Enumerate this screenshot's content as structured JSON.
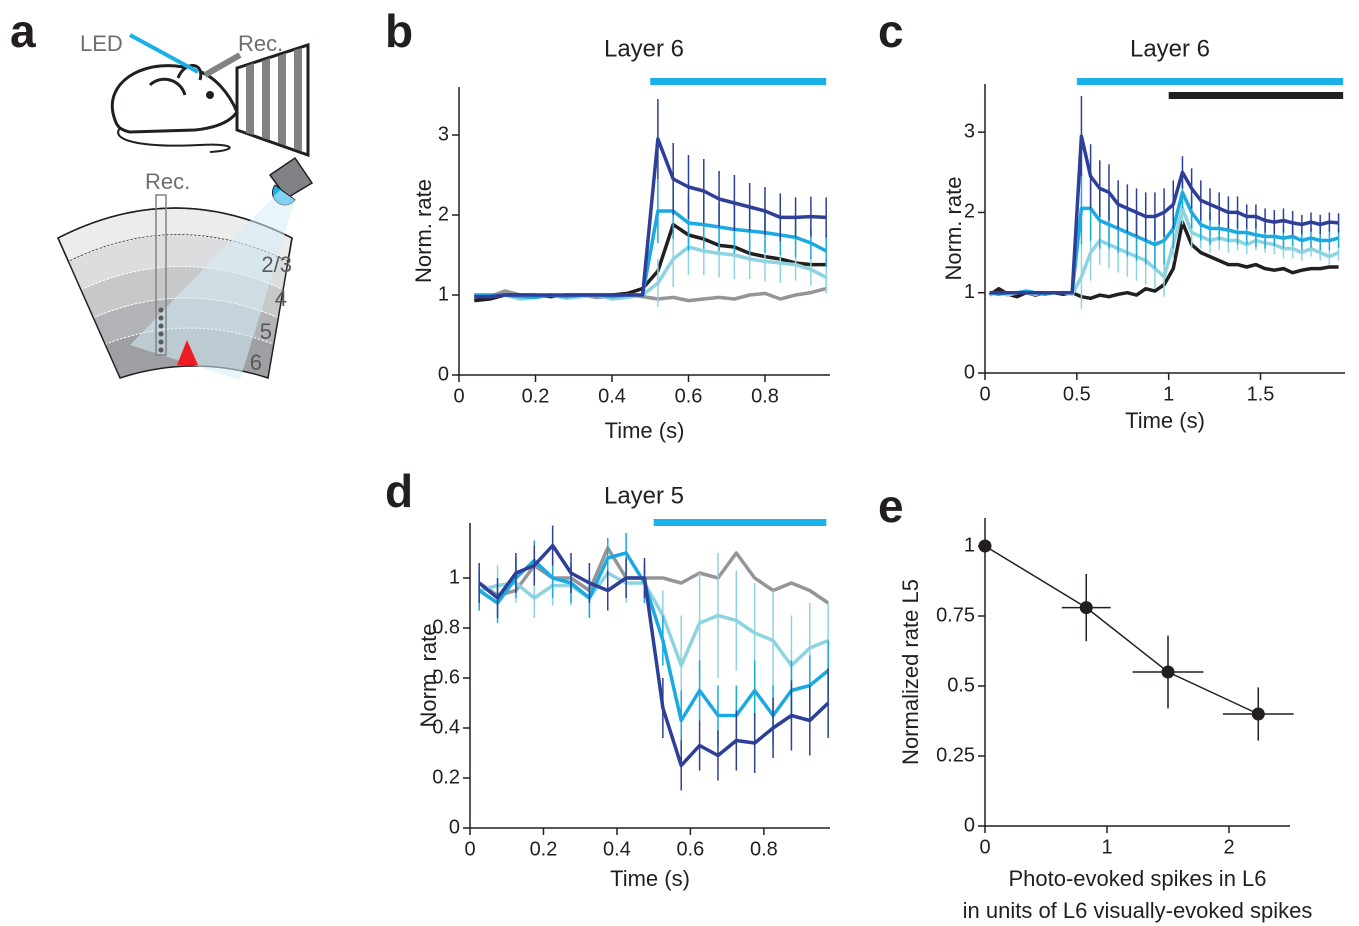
{
  "diagram": {
    "panel_label": "a",
    "led": "LED",
    "rec_top": "Rec.",
    "rec_probe": "Rec.",
    "layers": [
      "2/3",
      "4",
      "5",
      "6"
    ]
  },
  "chart_data": [
    {
      "type": "line",
      "panel_label": "b",
      "title": "Layer 6",
      "xlabel": "Time (s)",
      "ylabel": "Norm. rate",
      "xlim": [
        0,
        0.97
      ],
      "ylim": [
        0,
        3.6
      ],
      "xticks": [
        0,
        0.2,
        0.4,
        0.6,
        0.8
      ],
      "yticks": [
        0,
        1,
        2,
        3
      ],
      "stimulus_bars": [
        {
          "color": "#1ab0e8",
          "start": 0.5,
          "end": 0.96
        }
      ],
      "x": [
        0.04,
        0.08,
        0.12,
        0.16,
        0.2,
        0.24,
        0.28,
        0.32,
        0.36,
        0.4,
        0.44,
        0.48,
        0.52,
        0.56,
        0.6,
        0.64,
        0.68,
        0.72,
        0.76,
        0.8,
        0.84,
        0.88,
        0.92,
        0.96
      ],
      "series": [
        {
          "color": "#939598",
          "values": [
            0.95,
            0.98,
            1.05,
            1.0,
            0.98,
            1.0,
            0.98,
            1.0,
            0.97,
            0.98,
            1.0,
            0.98,
            0.95,
            0.97,
            0.93,
            0.95,
            0.97,
            0.95,
            1.0,
            1.02,
            0.95,
            1.0,
            1.03,
            1.08
          ]
        },
        {
          "color": "#231f20",
          "values": [
            0.93,
            0.95,
            1.0,
            1.0,
            1.0,
            0.98,
            1.0,
            1.0,
            1.0,
            1.0,
            1.02,
            1.08,
            1.3,
            1.88,
            1.75,
            1.7,
            1.62,
            1.6,
            1.52,
            1.48,
            1.45,
            1.4,
            1.38,
            1.38
          ]
        },
        {
          "color": "#8dd3e0",
          "values": [
            1.0,
            0.98,
            1.0,
            0.95,
            0.97,
            1.0,
            0.96,
            0.98,
            1.0,
            0.95,
            0.97,
            1.0,
            1.15,
            1.45,
            1.6,
            1.55,
            1.52,
            1.5,
            1.45,
            1.42,
            1.4,
            1.38,
            1.32,
            1.22
          ],
          "errors": [
            null,
            null,
            null,
            null,
            null,
            null,
            null,
            null,
            null,
            null,
            null,
            null,
            0.3,
            0.35,
            0.35,
            0.3,
            0.3,
            0.3,
            0.25,
            0.25,
            0.25,
            0.2,
            0.2,
            0.2
          ]
        },
        {
          "color": "#1aa9e0",
          "values": [
            1.0,
            1.0,
            1.0,
            0.98,
            0.97,
            1.0,
            0.98,
            1.0,
            1.0,
            0.98,
            1.0,
            1.0,
            2.05,
            2.05,
            1.9,
            1.88,
            1.85,
            1.82,
            1.8,
            1.78,
            1.75,
            1.72,
            1.65,
            1.55
          ],
          "errors": [
            null,
            null,
            null,
            null,
            null,
            null,
            null,
            null,
            null,
            null,
            null,
            null,
            0.4,
            0.35,
            0.35,
            0.3,
            0.3,
            0.3,
            0.3,
            0.25,
            0.25,
            0.25,
            0.2,
            0.2
          ]
        },
        {
          "color": "#2e3f97",
          "values": [
            0.98,
            0.98,
            1,
            1,
            1,
            1,
            1,
            1,
            1,
            1,
            1,
            1,
            2.95,
            2.45,
            2.35,
            2.3,
            2.2,
            2.15,
            2.1,
            2.05,
            1.97,
            1.97,
            1.98,
            1.97
          ],
          "errors": [
            null,
            null,
            null,
            null,
            null,
            null,
            null,
            null,
            null,
            null,
            null,
            null,
            0.5,
            0.45,
            0.4,
            0.4,
            0.35,
            0.35,
            0.3,
            0.3,
            0.3,
            0.25,
            0.25,
            0.25
          ]
        }
      ]
    },
    {
      "type": "line",
      "panel_label": "c",
      "title": "Layer 6",
      "xlabel": "Time (s)",
      "ylabel": "Norm. rate",
      "xlim": [
        0,
        1.96
      ],
      "ylim": [
        0,
        3.6
      ],
      "xticks": [
        0,
        0.5,
        1,
        1.5
      ],
      "yticks": [
        0,
        1,
        2,
        3
      ],
      "stimulus_bars": [
        {
          "color": "#1ab0e8",
          "start": 0.5,
          "end": 1.95
        },
        {
          "color": "#231f20",
          "start": 1.0,
          "end": 1.95
        }
      ],
      "x": [
        0.025,
        0.075,
        0.125,
        0.175,
        0.225,
        0.275,
        0.325,
        0.375,
        0.425,
        0.475,
        0.525,
        0.575,
        0.625,
        0.675,
        0.725,
        0.775,
        0.825,
        0.875,
        0.925,
        0.975,
        1.025,
        1.075,
        1.125,
        1.175,
        1.225,
        1.275,
        1.325,
        1.375,
        1.425,
        1.475,
        1.525,
        1.575,
        1.625,
        1.675,
        1.725,
        1.775,
        1.825,
        1.875,
        1.925
      ],
      "series": [
        {
          "color": "#231f20",
          "values": [
            0.97,
            1.05,
            0.98,
            0.95,
            1,
            0.97,
            1,
            1,
            0.98,
            1,
            0.95,
            0.93,
            0.97,
            0.95,
            0.98,
            1.0,
            0.97,
            1.05,
            1.02,
            1.1,
            1.3,
            1.88,
            1.6,
            1.5,
            1.45,
            1.4,
            1.35,
            1.35,
            1.32,
            1.35,
            1.3,
            1.28,
            1.3,
            1.25,
            1.28,
            1.3,
            1.3,
            1.32,
            1.32
          ]
        },
        {
          "color": "#8dd3e0",
          "values": [
            0.98,
            1,
            0.97,
            1,
            1,
            0.98,
            1,
            1,
            1,
            0.98,
            1.2,
            1.5,
            1.65,
            1.6,
            1.55,
            1.5,
            1.45,
            1.4,
            1.3,
            1.2,
            1.6,
            2.05,
            1.75,
            1.7,
            1.65,
            1.68,
            1.65,
            1.65,
            1.6,
            1.65,
            1.62,
            1.6,
            1.55,
            1.55,
            1.5,
            1.55,
            1.5,
            1.45,
            1.5
          ],
          "errors": [
            null,
            null,
            null,
            null,
            null,
            null,
            null,
            null,
            null,
            null,
            0.4,
            0.35,
            0.3,
            0.3,
            0.3,
            0.3,
            0.3,
            0.3,
            0.25,
            0.25,
            0.2,
            0.2,
            0.2,
            0.15,
            0.15,
            0.15,
            0.15,
            0.12,
            0.12,
            0.12,
            0.12,
            0.12,
            0.12,
            0.12,
            0.1,
            0.1,
            0.1,
            0.1,
            0.1
          ]
        },
        {
          "color": "#1aa9e0",
          "values": [
            1,
            0.98,
            1,
            1,
            1.02,
            1,
            0.98,
            1,
            1,
            1,
            2.05,
            2.05,
            1.9,
            1.85,
            1.8,
            1.75,
            1.7,
            1.65,
            1.6,
            1.65,
            1.8,
            2.25,
            2.0,
            1.85,
            1.8,
            1.8,
            1.78,
            1.75,
            1.75,
            1.72,
            1.7,
            1.7,
            1.68,
            1.7,
            1.65,
            1.68,
            1.65,
            1.65,
            1.68
          ],
          "errors": [
            null,
            null,
            null,
            null,
            null,
            null,
            null,
            null,
            null,
            null,
            0.45,
            0.4,
            0.35,
            0.3,
            0.3,
            0.3,
            0.3,
            0.3,
            0.3,
            0.3,
            0.25,
            0.2,
            0.2,
            0.2,
            0.2,
            0.15,
            0.15,
            0.15,
            0.15,
            0.15,
            0.15,
            0.12,
            0.12,
            0.12,
            0.12,
            0.12,
            0.12,
            0.12,
            0.12
          ]
        },
        {
          "color": "#2e3f97",
          "values": [
            1,
            1,
            1,
            1,
            1,
            1,
            1,
            1,
            1,
            1,
            2.95,
            2.45,
            2.3,
            2.25,
            2.1,
            2.05,
            2.0,
            1.95,
            1.95,
            2.0,
            2.1,
            2.5,
            2.3,
            2.15,
            2.1,
            2.05,
            2.0,
            2.0,
            1.95,
            1.95,
            1.9,
            1.88,
            1.9,
            1.87,
            1.85,
            1.88,
            1.85,
            1.88,
            1.87
          ],
          "errors": [
            null,
            null,
            null,
            null,
            null,
            null,
            null,
            null,
            null,
            null,
            0.5,
            0.4,
            0.35,
            0.35,
            0.3,
            0.3,
            0.3,
            0.3,
            0.3,
            0.3,
            0.3,
            0.2,
            0.25,
            0.25,
            0.2,
            0.2,
            0.2,
            0.2,
            0.15,
            0.15,
            0.15,
            0.15,
            0.15,
            0.15,
            0.12,
            0.12,
            0.12,
            0.12,
            0.12
          ]
        }
      ]
    },
    {
      "type": "line",
      "panel_label": "d",
      "title": "Layer 5",
      "xlabel": "Time (s)",
      "ylabel": "Norm. rate",
      "xlim": [
        0,
        0.98
      ],
      "ylim": [
        0,
        1.22
      ],
      "xticks": [
        0,
        0.2,
        0.4,
        0.6,
        0.8
      ],
      "yticks": [
        0,
        0.2,
        0.4,
        0.6,
        0.8,
        1
      ],
      "stimulus_bars": [
        {
          "color": "#1ab0e8",
          "start": 0.5,
          "end": 0.97
        }
      ],
      "x": [
        0.025,
        0.075,
        0.125,
        0.175,
        0.225,
        0.275,
        0.325,
        0.375,
        0.425,
        0.475,
        0.525,
        0.575,
        0.625,
        0.675,
        0.725,
        0.775,
        0.825,
        0.875,
        0.925,
        0.975
      ],
      "series": [
        {
          "color": "#939598",
          "values": [
            0.98,
            0.93,
            0.95,
            1.05,
            1.0,
            1.0,
            0.95,
            1.12,
            1.0,
            1.0,
            1.0,
            0.98,
            1.02,
            1.0,
            1.1,
            1.0,
            0.95,
            0.98,
            0.95,
            0.9
          ]
        },
        {
          "color": "#8dd3e0",
          "values": [
            0.95,
            0.97,
            0.98,
            0.92,
            0.97,
            0.97,
            0.92,
            1.02,
            0.98,
            0.98,
            0.85,
            0.65,
            0.82,
            0.85,
            0.83,
            0.78,
            0.75,
            0.65,
            0.72,
            0.75
          ],
          "errors": [
            0.08,
            0.08,
            0.08,
            0.08,
            0.08,
            0.08,
            0.08,
            0.08,
            0.08,
            0.08,
            0.1,
            0.2,
            0.2,
            0.25,
            0.2,
            0.2,
            0.2,
            0.2,
            0.18,
            0.15
          ]
        },
        {
          "color": "#1aa9e0",
          "values": [
            0.95,
            0.9,
            1.0,
            1.07,
            1.0,
            0.98,
            0.92,
            1.08,
            1.1,
            0.98,
            0.75,
            0.43,
            0.55,
            0.45,
            0.45,
            0.55,
            0.45,
            0.55,
            0.57,
            0.63
          ],
          "errors": [
            0.08,
            0.08,
            0.08,
            0.08,
            0.08,
            0.08,
            0.08,
            0.08,
            0.08,
            0.08,
            0.1,
            0.12,
            0.12,
            0.12,
            0.12,
            0.12,
            0.12,
            0.12,
            0.12,
            0.12
          ]
        },
        {
          "color": "#2e3f97",
          "values": [
            0.98,
            0.92,
            1.02,
            1.05,
            1.13,
            1.02,
            0.98,
            0.95,
            1.0,
            1.0,
            0.48,
            0.25,
            0.33,
            0.29,
            0.35,
            0.34,
            0.4,
            0.45,
            0.43,
            0.5
          ],
          "errors": [
            0.08,
            0.08,
            0.08,
            0.08,
            0.08,
            0.08,
            0.08,
            0.08,
            0.08,
            0.08,
            0.12,
            0.1,
            0.1,
            0.1,
            0.12,
            0.12,
            0.12,
            0.14,
            0.14,
            0.14
          ]
        }
      ]
    },
    {
      "type": "scatter",
      "panel_label": "e",
      "xlabel": [
        "Photo-evoked spikes in L6",
        "in units of L6 visually-evoked spikes"
      ],
      "ylabel": "Normalized rate L5",
      "xlim": [
        0,
        2.5
      ],
      "ylim": [
        0,
        1.1
      ],
      "xticks": [
        0,
        1,
        2
      ],
      "yticks": [
        0,
        0.25,
        0.5,
        0.75,
        1
      ],
      "connect": true,
      "x": [
        0,
        0.83,
        1.5,
        2.24
      ],
      "series": [
        {
          "color": "#231f20",
          "values": [
            1,
            0.78,
            0.55,
            0.4
          ],
          "errors": [
            null,
            0.12,
            0.13,
            0.095
          ],
          "x_errors": [
            null,
            0.2,
            0.29,
            0.29
          ]
        }
      ]
    }
  ]
}
